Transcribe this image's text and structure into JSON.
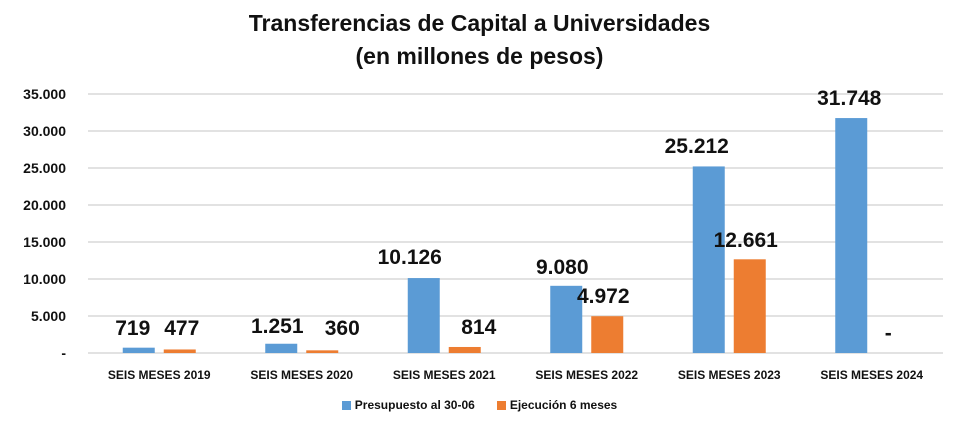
{
  "chart_data": {
    "type": "bar",
    "title": "Transferencias de Capital a Universidades",
    "subtitle": "(en millones de pesos)",
    "xlabel": "",
    "ylabel": "",
    "ylim": [
      0,
      35000
    ],
    "yticks": [
      0,
      5000,
      10000,
      15000,
      20000,
      25000,
      30000,
      35000
    ],
    "ytick_labels": [
      "-",
      "5.000",
      "10.000",
      "15.000",
      "20.000",
      "25.000",
      "30.000",
      "35.000"
    ],
    "grid": true,
    "legend_position": "bottom",
    "categories": [
      "SEIS MESES 2019",
      "SEIS MESES 2020",
      "SEIS MESES 2021",
      "SEIS MESES 2022",
      "SEIS MESES 2023",
      "SEIS MESES 2024"
    ],
    "series": [
      {
        "name": "Presupuesto al 30-06",
        "color": "#5b9bd5",
        "values": [
          719,
          1251,
          10126,
          9080,
          25212,
          31748
        ],
        "labels": [
          "719",
          "1.251",
          "10.126",
          "9.080",
          "25.212",
          "31.748"
        ]
      },
      {
        "name": "Ejecución 6 meses",
        "color": "#ed7d31",
        "values": [
          477,
          360,
          814,
          4972,
          12661,
          0
        ],
        "labels": [
          "477",
          "360",
          "814",
          "4.972",
          "12.661",
          "-"
        ]
      }
    ]
  }
}
